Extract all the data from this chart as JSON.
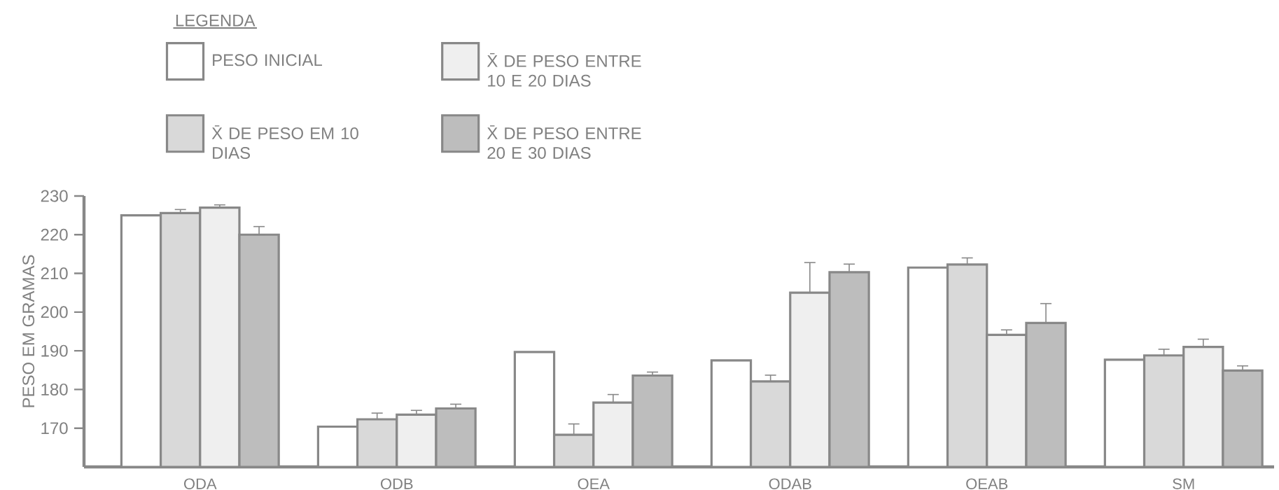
{
  "chart_data": {
    "type": "bar",
    "legend_title": "LEGENDA",
    "ylabel": "PESO EM GRAMAS",
    "categories": [
      "ODA",
      "ODB",
      "OEA",
      "ODAB",
      "OEAB",
      "SM"
    ],
    "series": [
      {
        "name": "PESO INICIAL",
        "color": "#ffffff",
        "values": [
          225,
          170.4,
          189.7,
          187.5,
          211.5,
          187.7
        ]
      },
      {
        "name": "X̄ DE PESO EM 10 DIAS",
        "color": "#d9d9d9",
        "values": [
          225.6,
          172.3,
          168.3,
          182.1,
          212.3,
          188.8
        ],
        "errors": [
          [
            225.6,
            226.5
          ],
          [
            172.3,
            173.9
          ],
          [
            168.3,
            171.1
          ],
          [
            182.1,
            183.7
          ],
          [
            212.3,
            214.0
          ],
          [
            188.8,
            190.4
          ]
        ]
      },
      {
        "name": "X̄ DE PESO ENTRE 10 E 20 DIAS",
        "color": "#efefef",
        "values": [
          227,
          173.5,
          176.6,
          205.0,
          194.1,
          191.0
        ],
        "errors": [
          [
            227,
            227.7
          ],
          [
            173.5,
            174.6
          ],
          [
            176.6,
            178.7
          ],
          [
            205.0,
            212.8
          ],
          [
            194.1,
            195.4
          ],
          [
            191.0,
            193.0
          ]
        ]
      },
      {
        "name": "X̄ DE PESO ENTRE 20 E 30 DIAS",
        "color": "#bdbdbd",
        "values": [
          220,
          175.1,
          183.6,
          210.3,
          197.2,
          184.9
        ],
        "errors": [
          [
            220,
            222.1
          ],
          [
            175.1,
            176.2
          ],
          [
            183.6,
            184.5
          ],
          [
            210.3,
            212.4
          ],
          [
            197.2,
            202.2
          ],
          [
            184.9,
            186.1
          ]
        ]
      }
    ],
    "ylim": [
      160,
      230
    ],
    "yticks": [
      170,
      180,
      190,
      200,
      210,
      220,
      230
    ],
    "legend": "top left",
    "grid": false
  }
}
